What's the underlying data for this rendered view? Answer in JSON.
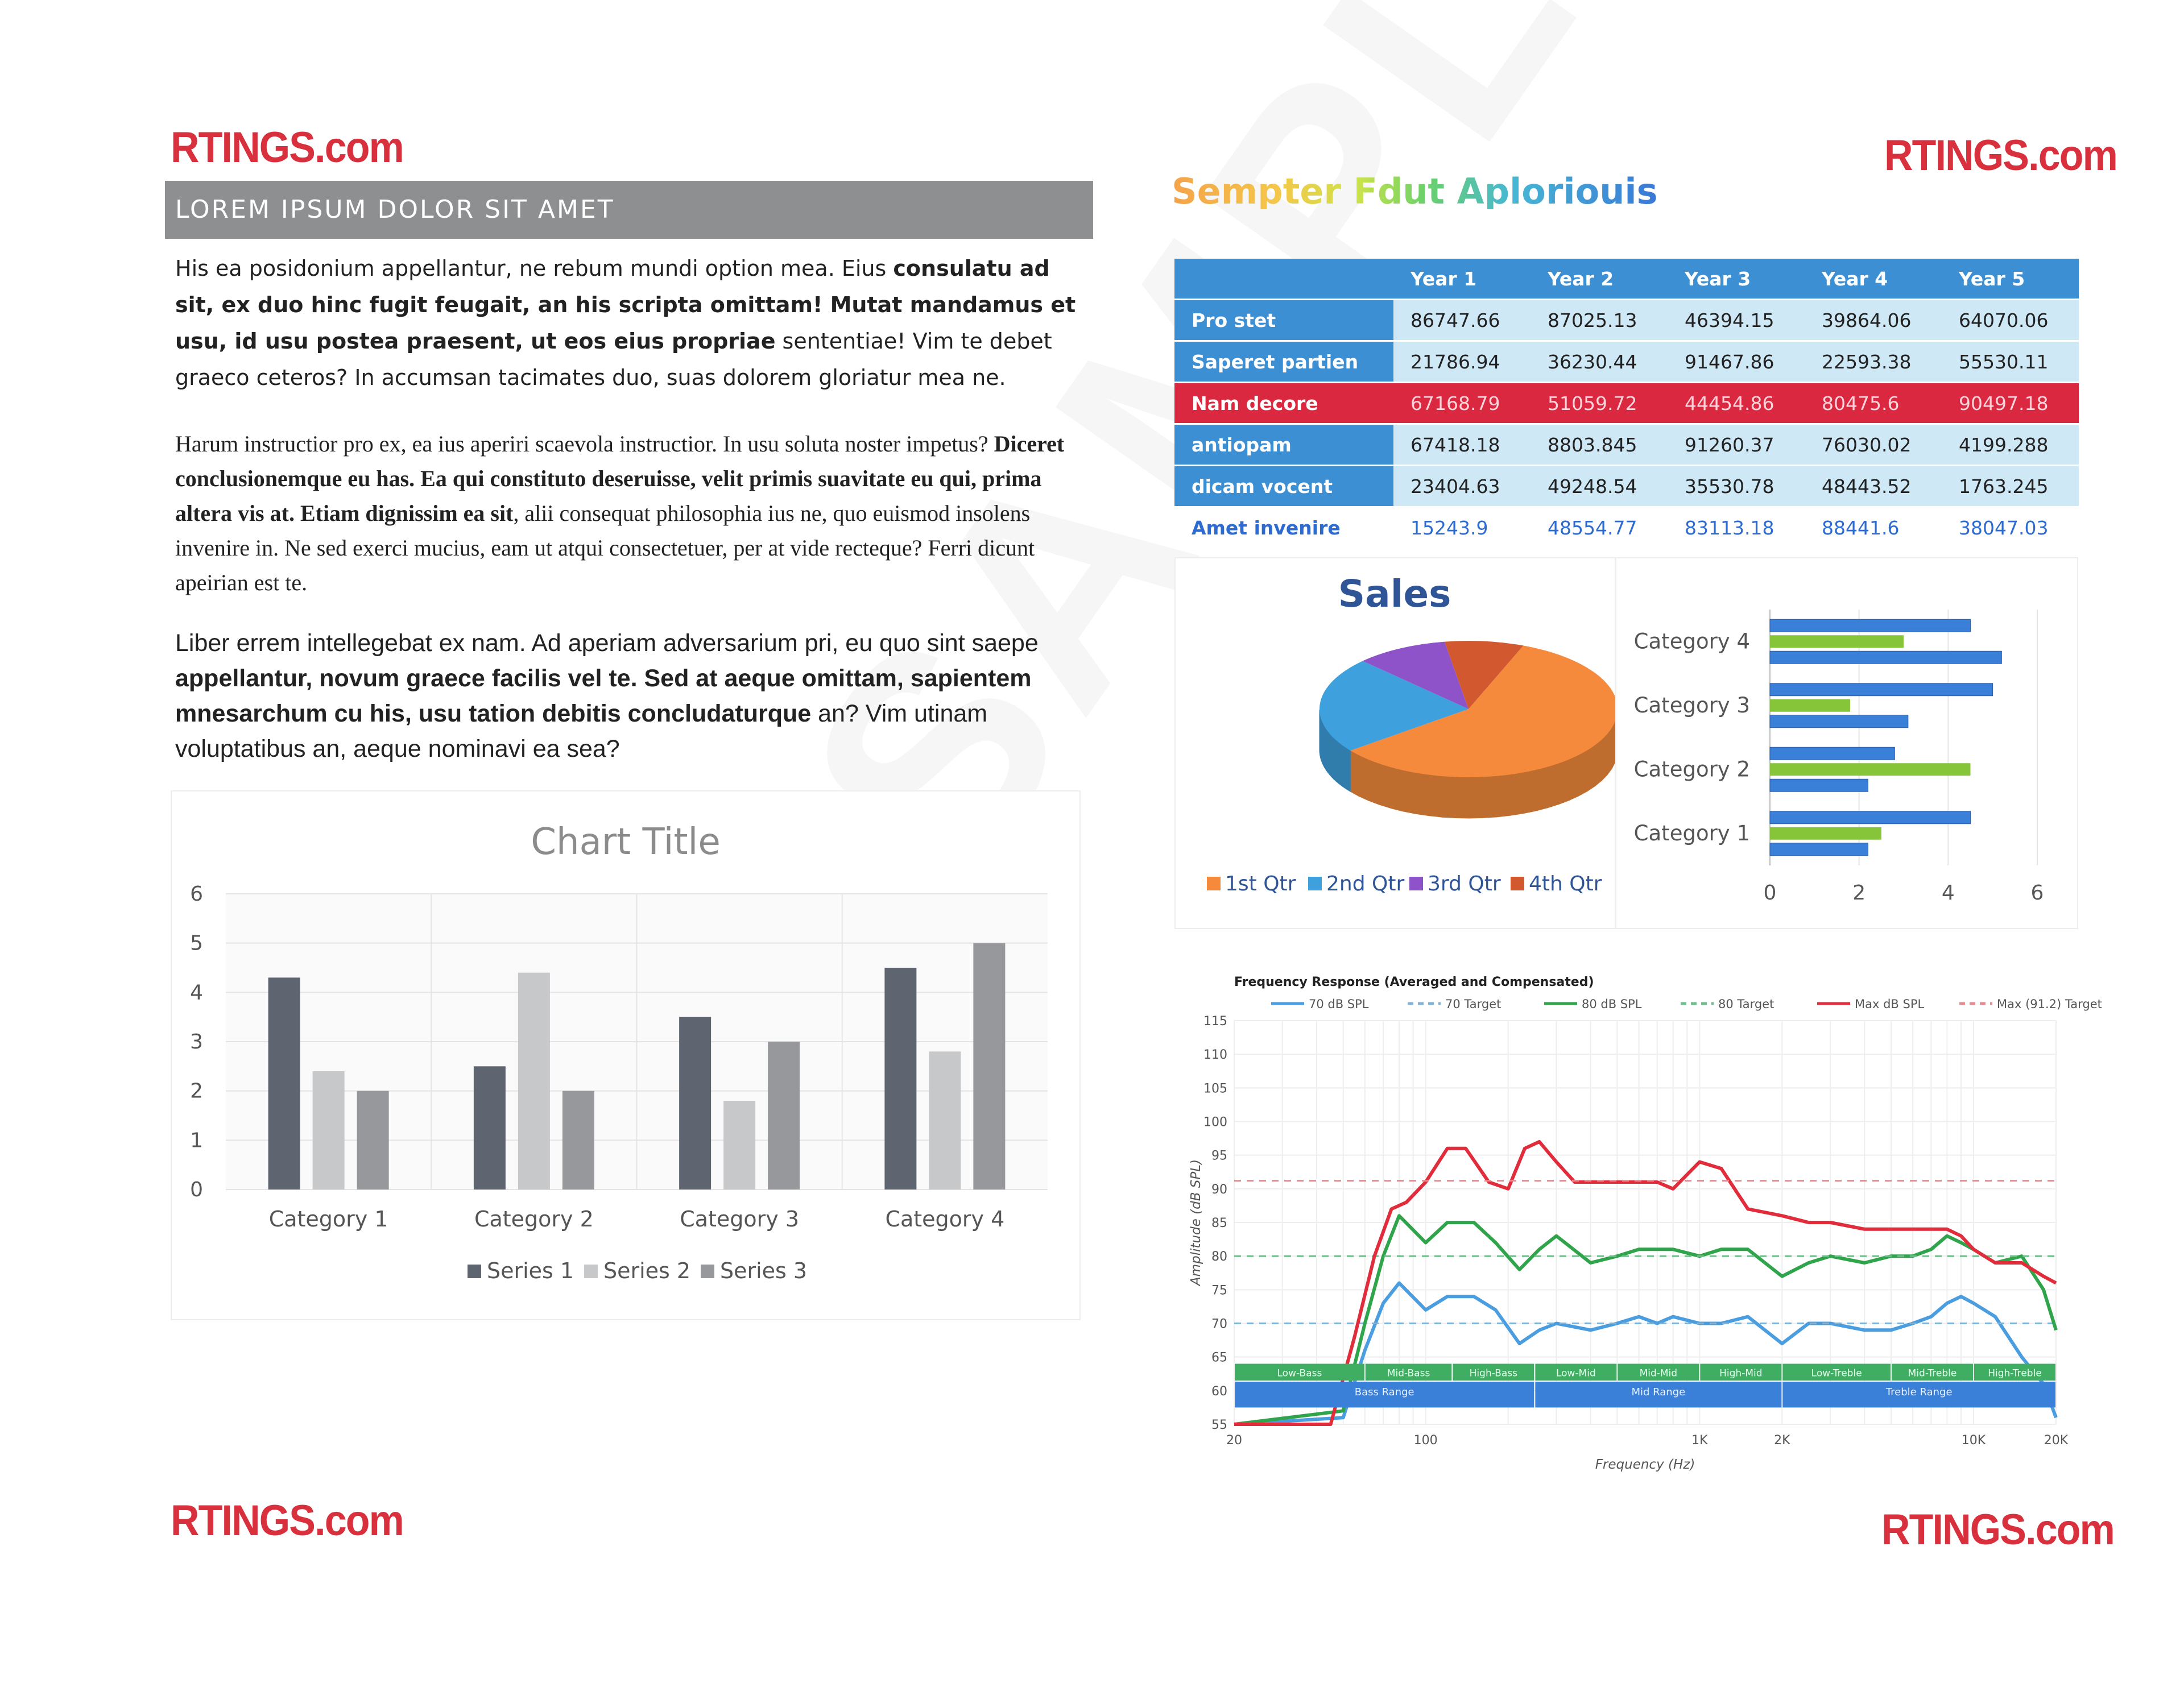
{
  "logos": {
    "top_left": "RTINGS.com",
    "top_right": "RTINGS.com",
    "bottom_left": "RTINGS.com",
    "bottom_right": "RTINGS.com"
  },
  "watermark": "SAMPLE",
  "banner": "LOREM IPSUM DOLOR SIT AMET",
  "para1": {
    "a": "His ea posidonium appellantur, ne rebum mundi option mea. Eius ",
    "b": "consulatu ad sit, ex duo hinc fugit feugait, an his scripta omittam! Mutat mandamus et usu, id usu postea praesent, ut eos eius propriae",
    "c": " sententiae! Vim te debet graeco ceteros? In accumsan tacimates duo, suas dolorem gloriatur mea ne."
  },
  "para2": {
    "a": "Harum instructior pro ex, ea ius aperiri scaevola instructior. In usu soluta noster impetus? ",
    "b": "Diceret conclusionemque eu has. Ea qui constituto deseruisse, velit primis suavitate eu qui, prima altera vis at. Etiam dignissim ea sit",
    "c": ", alii consequat philosophia ius ne, quo euismod insolens invenire in. Ne sed exerci mucius, eam ut atqui consectetuer, per at vide recteque? Ferri dicunt apeirian est te."
  },
  "para3": {
    "a": "Liber errem intellegebat ex nam. Ad aperiam adversarium pri, eu quo sint saepe ",
    "b": "appellantur, novum graece facilis vel te. Sed at aeque omittam, sapientem mnesarchum cu his, usu tation debitis concludaturque",
    "c": " an? Vim utinam voluptatibus an, aeque nominavi ea sea?"
  },
  "right_title": "Sempter Fdut Aploriouis",
  "table": {
    "headers": [
      "",
      "Year 1",
      "Year 2",
      "Year 3",
      "Year 4",
      "Year 5"
    ],
    "rows": [
      {
        "label": "Pro stet",
        "values": [
          "86747.66",
          "87025.13",
          "46394.15",
          "39864.06",
          "64070.06"
        ]
      },
      {
        "label": "Saperet partien",
        "values": [
          "21786.94",
          "36230.44",
          "91467.86",
          "22593.38",
          "55530.11"
        ]
      },
      {
        "label": "Nam decore",
        "values": [
          "67168.79",
          "51059.72",
          "44454.86",
          "80475.6",
          "90497.18"
        ]
      },
      {
        "label": "antiopam",
        "values": [
          "67418.18",
          "8803.845",
          "91260.37",
          "76030.02",
          "4199.288"
        ]
      },
      {
        "label": "dicam vocent",
        "values": [
          "23404.63",
          "49248.54",
          "35530.78",
          "48443.52",
          "1763.245"
        ]
      },
      {
        "label": "Amet invenire",
        "values": [
          "15243.9",
          "48554.77",
          "83113.18",
          "88441.6",
          "38047.03"
        ]
      }
    ]
  },
  "chart_data": [
    {
      "type": "bar",
      "title": "Chart Title",
      "categories": [
        "Category 1",
        "Category 2",
        "Category 3",
        "Category 4"
      ],
      "series": [
        {
          "name": "Series 1",
          "values": [
            4.3,
            2.5,
            3.5,
            4.5
          ]
        },
        {
          "name": "Series 2",
          "values": [
            2.4,
            4.4,
            1.8,
            2.8
          ]
        },
        {
          "name": "Series 3",
          "values": [
            2.0,
            2.0,
            3.0,
            5.0
          ]
        }
      ],
      "ylim": [
        0,
        6
      ],
      "yticks": [
        "0",
        "1",
        "2",
        "3",
        "4",
        "5",
        "6"
      ],
      "legend_position": "bottom",
      "colors": [
        "#5f6570",
        "#c7c8ca",
        "#96989b"
      ]
    },
    {
      "type": "pie",
      "title": "Sales",
      "labels": [
        "1st Qtr",
        "2nd Qtr",
        "3rd Qtr",
        "4th Qtr"
      ],
      "values": [
        8.2,
        3.2,
        1.4,
        1.2
      ],
      "legend_position": "bottom",
      "colors": [
        "#f58a3c",
        "#3ea0dc",
        "#8e52c9",
        "#d2582f"
      ]
    },
    {
      "type": "bar",
      "orientation": "horizontal",
      "categories": [
        "Category 1",
        "Category 2",
        "Category 3",
        "Category 4"
      ],
      "series": [
        {
          "values": [
            4.5,
            2.8,
            5.0,
            4.5
          ]
        },
        {
          "values": [
            2.5,
            4.5,
            1.8,
            3.0
          ]
        },
        {
          "values": [
            2.2,
            2.2,
            3.1,
            5.2
          ]
        }
      ],
      "xlim": [
        0,
        6
      ],
      "xticks": [
        "0",
        "2",
        "4",
        "6"
      ],
      "colors": [
        "#3a7fd8",
        "#86c43a",
        "#3a7fd8"
      ]
    },
    {
      "type": "line",
      "title": "Frequency Response (Averaged and Compensated)",
      "xlabel": "Frequency (Hz)",
      "ylabel": "Amplitude (dB SPL)",
      "x_scale": "log",
      "xlim": [
        20,
        20000
      ],
      "ylim": [
        55,
        115
      ],
      "xticks": [
        "20",
        "100",
        "1K",
        "2K",
        "10K",
        "20K"
      ],
      "yticks": [
        "55",
        "60",
        "65",
        "70",
        "75",
        "80",
        "85",
        "90",
        "95",
        "100",
        "105",
        "110",
        "115"
      ],
      "series": [
        {
          "name": "70 dB SPL",
          "color": "#4a9ee0",
          "x": [
            20,
            50,
            60,
            70,
            80,
            100,
            120,
            150,
            180,
            220,
            260,
            300,
            400,
            500,
            600,
            700,
            800,
            1000,
            1200,
            1500,
            2000,
            2500,
            3000,
            4000,
            5000,
            6000,
            7000,
            8000,
            9000,
            10000,
            12000,
            15000,
            18000,
            20000
          ],
          "y": [
            55,
            56,
            66,
            73,
            76,
            72,
            74,
            74,
            72,
            67,
            69,
            70,
            69,
            70,
            71,
            70,
            71,
            70,
            70,
            71,
            67,
            70,
            70,
            69,
            69,
            70,
            71,
            73,
            74,
            73,
            71,
            65,
            61,
            56
          ]
        },
        {
          "name": "70 Target",
          "color": "#7fb2d6",
          "dashed": true,
          "x": [
            20,
            20000
          ],
          "y": [
            70,
            70
          ]
        },
        {
          "name": "80 dB SPL",
          "color": "#2fa44a",
          "x": [
            20,
            50,
            60,
            70,
            80,
            100,
            120,
            150,
            180,
            220,
            260,
            300,
            400,
            500,
            600,
            700,
            800,
            1000,
            1200,
            1500,
            2000,
            2500,
            3000,
            4000,
            5000,
            6000,
            7000,
            8000,
            9000,
            10000,
            12000,
            15000,
            18000,
            20000
          ],
          "y": [
            55,
            57,
            70,
            80,
            86,
            82,
            85,
            85,
            82,
            78,
            81,
            83,
            79,
            80,
            81,
            81,
            81,
            80,
            81,
            81,
            77,
            79,
            80,
            79,
            80,
            80,
            81,
            83,
            82,
            81,
            79,
            80,
            75,
            69
          ]
        },
        {
          "name": "80 Target",
          "color": "#6ebd8a",
          "dashed": true,
          "x": [
            20,
            20000
          ],
          "y": [
            80,
            80
          ]
        },
        {
          "name": "Max dB SPL",
          "color": "#e02c3b",
          "x": [
            20,
            45,
            55,
            65,
            75,
            85,
            100,
            120,
            140,
            170,
            200,
            230,
            260,
            300,
            350,
            400,
            500,
            600,
            700,
            800,
            1000,
            1200,
            1500,
            2000,
            2500,
            3000,
            4000,
            5000,
            6000,
            7000,
            8000,
            9000,
            10000,
            12000,
            15000,
            18000,
            20000
          ],
          "y": [
            55,
            55,
            68,
            80,
            87,
            88,
            91,
            96,
            96,
            91,
            90,
            96,
            97,
            94,
            91,
            91,
            91,
            91,
            91,
            90,
            94,
            93,
            87,
            86,
            85,
            85,
            84,
            84,
            84,
            84,
            84,
            83,
            81,
            79,
            79,
            77,
            76
          ]
        },
        {
          "name": "Max (91.2) Target",
          "color": "#e88a8f",
          "dashed": true,
          "x": [
            20,
            20000
          ],
          "y": [
            91.2,
            91.2
          ]
        }
      ],
      "bands_top": [
        "Low-Bass",
        "Mid-Bass",
        "High-Bass",
        "Low-Mid",
        "Mid-Mid",
        "High-Mid",
        "Low-Treble",
        "Mid-Treble",
        "High-Treble"
      ],
      "bands_bottom": [
        "Bass Range",
        "Mid Range",
        "Treble Range"
      ]
    }
  ]
}
